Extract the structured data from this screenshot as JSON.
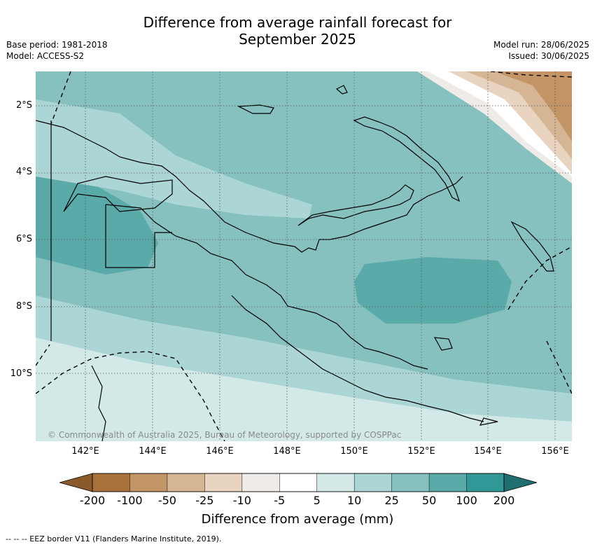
{
  "title_line1": "Difference from average rainfall forecast for",
  "title_line2": "September 2025",
  "base_period": "Base period: 1981-2018",
  "model": "Model: ACCESS-S2",
  "model_run": "Model run: 28/06/2025",
  "issued": "Issued: 30/06/2025",
  "lat_labels": [
    "2°S",
    "4°S",
    "6°S",
    "8°S",
    "10°S"
  ],
  "lon_labels": [
    "142°E",
    "144°E",
    "146°E",
    "148°E",
    "150°E",
    "152°E",
    "154°E",
    "156°E"
  ],
  "copyright": "© Commonwealth of Australia 2025, Bureau of Meteorology, supported by COSPPac",
  "colorbar": {
    "ticks": [
      "-200",
      "-100",
      "-50",
      "-25",
      "-10",
      "-5",
      "5",
      "10",
      "25",
      "50",
      "100",
      "200"
    ],
    "colors": [
      "#a8713a",
      "#c29466",
      "#d6b595",
      "#e8d4c1",
      "#efebe8",
      "#ffffff",
      "#d3e9e8",
      "#acd6d5",
      "#86c1c0",
      "#5aaaa9",
      "#309896"
    ],
    "under_color": "#8b5a2b",
    "over_color": "#1f6f6e",
    "label": "Difference from average (mm)"
  },
  "footnote": "--  --  -- EEZ border V11 (Flanders Marine Institute, 2019)."
}
